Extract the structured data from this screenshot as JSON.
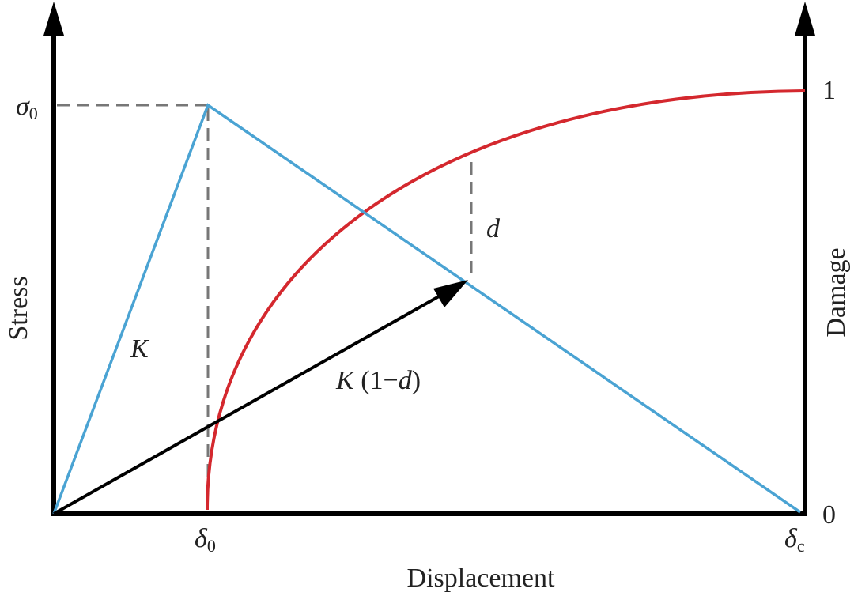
{
  "axes": {
    "left_label": "Stress",
    "right_label": "Damage",
    "bottom_label": "Displacement"
  },
  "ticks": {
    "sigma0": {
      "symbol": "σ",
      "subscript": "0"
    },
    "delta0": {
      "symbol": "δ",
      "subscript": "0"
    },
    "deltac": {
      "symbol": "δ",
      "subscript": "c"
    },
    "damage_top": "1",
    "damage_bottom": "0"
  },
  "labels": {
    "stiffness": "K",
    "degraded": [
      "K",
      " (1−",
      "d",
      ")"
    ],
    "damage": "d"
  }
}
